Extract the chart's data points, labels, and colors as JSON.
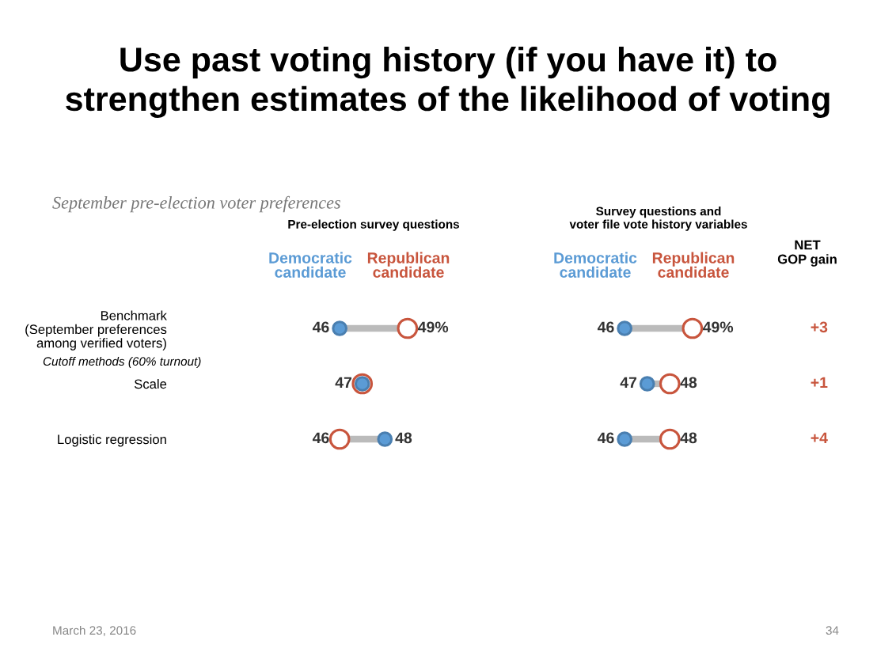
{
  "chart_data": [
    {
      "type": "other",
      "title": "Use past voting history (if you have it) to\nstrengthen estimates of the likelihood of voting",
      "subtitle": "September pre-election voter preferences",
      "annotations": [
        "March 23, 2016",
        "34"
      ]
    },
    {
      "type": "scatter",
      "title": "Pre-election survey questions",
      "categories": [
        "Benchmark\n(September preferences\namong verified voters)",
        "Scale",
        "Logistic regression"
      ],
      "series": [
        {
          "name": "Democratic candidate",
          "color": "#5b9bd5",
          "values": [
            46,
            47,
            48
          ],
          "value_labels": [
            "46",
            "47",
            "48"
          ]
        },
        {
          "name": "Republican candidate",
          "color": "#c8553d",
          "values": [
            49,
            47,
            46
          ],
          "value_labels": [
            "49%",
            null,
            "46"
          ]
        }
      ],
      "marker": "circle",
      "tick_labels": "y",
      "legend": false,
      "orientation": "horizontal",
      "annotations": [
        "Cutoff methods (60% turnout)"
      ]
    },
    {
      "type": "scatter",
      "title": "Survey questions and\nvoter file vote history variables",
      "categories": [
        null,
        null,
        null
      ],
      "series": [
        {
          "name": "Democratic candidate",
          "color": "#5b9bd5",
          "values": [
            46,
            47,
            46
          ],
          "value_labels": [
            "46",
            "47",
            "46"
          ]
        },
        {
          "name": "Republican candidate",
          "color": "#c8553d",
          "values": [
            49,
            48,
            48
          ],
          "value_labels": [
            "49%",
            "48",
            "48"
          ]
        }
      ],
      "marker": "circle",
      "tick_labels": false,
      "legend": false,
      "orientation": "horizontal",
      "annotations": [
        "NET\nGOP gain",
        "+3",
        "+1",
        "+4"
      ]
    }
  ]
}
